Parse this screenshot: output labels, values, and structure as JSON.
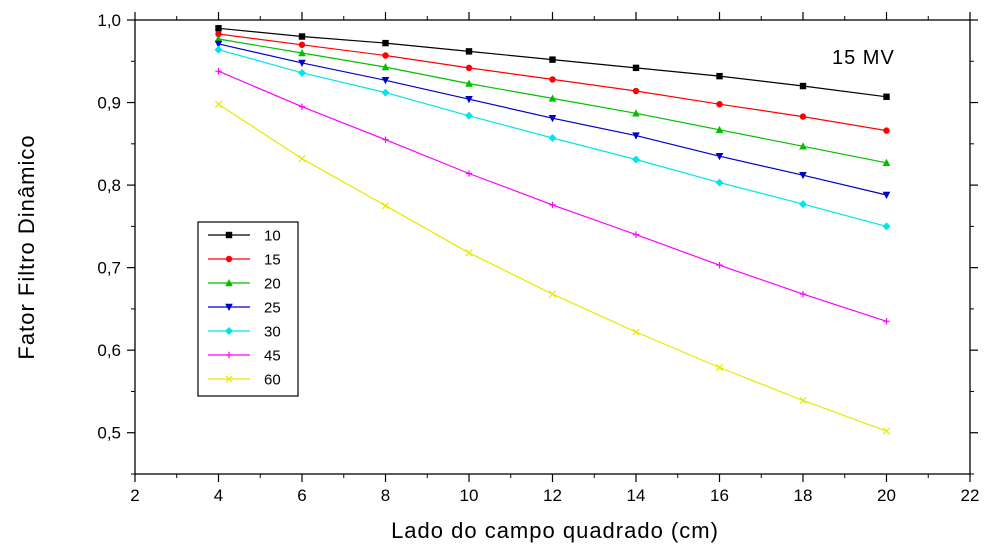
{
  "chart_data": {
    "type": "line",
    "xlabel": "Lado do campo quadrado (cm)",
    "ylabel": "Fator Filtro Dinâmico",
    "annotation": "15 MV",
    "xlim": [
      2,
      22
    ],
    "ylim": [
      0.45,
      1.0
    ],
    "x_ticks": [
      2,
      4,
      6,
      8,
      10,
      12,
      14,
      16,
      18,
      20,
      22
    ],
    "y_ticks": [
      0.5,
      0.6,
      0.7,
      0.8,
      0.9,
      1.0
    ],
    "x_tick_labels": [
      "2",
      "4",
      "6",
      "8",
      "10",
      "12",
      "14",
      "16",
      "18",
      "20",
      "22"
    ],
    "y_tick_labels": [
      "0,5",
      "0,6",
      "0,7",
      "0,8",
      "0,9",
      "1,0"
    ],
    "grid": false,
    "legend_position": "left",
    "x": [
      4,
      6,
      8,
      10,
      12,
      14,
      16,
      18,
      20
    ],
    "series": [
      {
        "name": "10",
        "color": "#000000",
        "marker": "square",
        "values": [
          0.99,
          0.98,
          0.972,
          0.962,
          0.952,
          0.942,
          0.932,
          0.92,
          0.907
        ]
      },
      {
        "name": "15",
        "color": "#ff0000",
        "marker": "circle",
        "values": [
          0.983,
          0.97,
          0.957,
          0.942,
          0.928,
          0.914,
          0.898,
          0.883,
          0.866
        ]
      },
      {
        "name": "20",
        "color": "#00c000",
        "marker": "triangle-up",
        "values": [
          0.977,
          0.96,
          0.943,
          0.923,
          0.905,
          0.887,
          0.867,
          0.847,
          0.827
        ]
      },
      {
        "name": "25",
        "color": "#0000cc",
        "marker": "triangle-down",
        "values": [
          0.971,
          0.948,
          0.927,
          0.904,
          0.881,
          0.86,
          0.835,
          0.812,
          0.788
        ]
      },
      {
        "name": "30",
        "color": "#00e5e5",
        "marker": "diamond",
        "values": [
          0.964,
          0.936,
          0.912,
          0.884,
          0.857,
          0.831,
          0.803,
          0.777,
          0.75
        ]
      },
      {
        "name": "45",
        "color": "#ff00ff",
        "marker": "plus",
        "values": [
          0.938,
          0.895,
          0.855,
          0.814,
          0.776,
          0.74,
          0.703,
          0.668,
          0.635
        ]
      },
      {
        "name": "60",
        "color": "#e8e800",
        "marker": "x",
        "values": [
          0.898,
          0.832,
          0.775,
          0.718,
          0.668,
          0.622,
          0.579,
          0.539,
          0.502
        ]
      }
    ]
  }
}
